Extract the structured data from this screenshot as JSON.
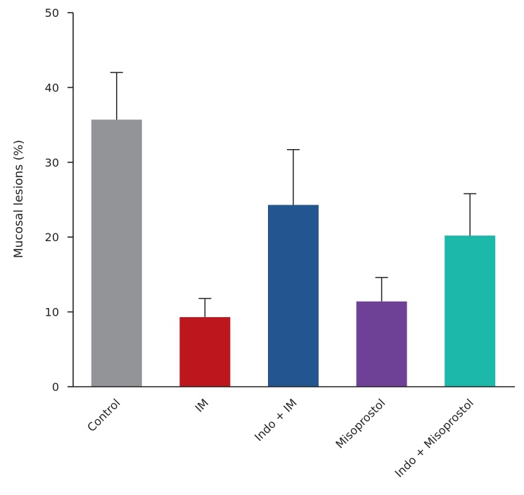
{
  "chart_data": {
    "type": "bar",
    "title": "",
    "xlabel": "",
    "ylabel": "Mucosal lesions (%)",
    "ylim": [
      0,
      50
    ],
    "yticks": [
      0,
      10,
      20,
      30,
      40,
      50
    ],
    "grid": false,
    "categories": [
      "Control",
      "IM",
      "Indo + IM",
      "Misoprostol",
      "Indo + Misoprostol"
    ],
    "values": [
      35.7,
      9.3,
      24.3,
      11.4,
      20.2
    ],
    "errors": [
      6.3,
      2.5,
      7.4,
      3.2,
      5.6
    ],
    "colors": [
      "#939498",
      "#be161d",
      "#235690",
      "#6e4197",
      "#1cb9aa"
    ]
  }
}
